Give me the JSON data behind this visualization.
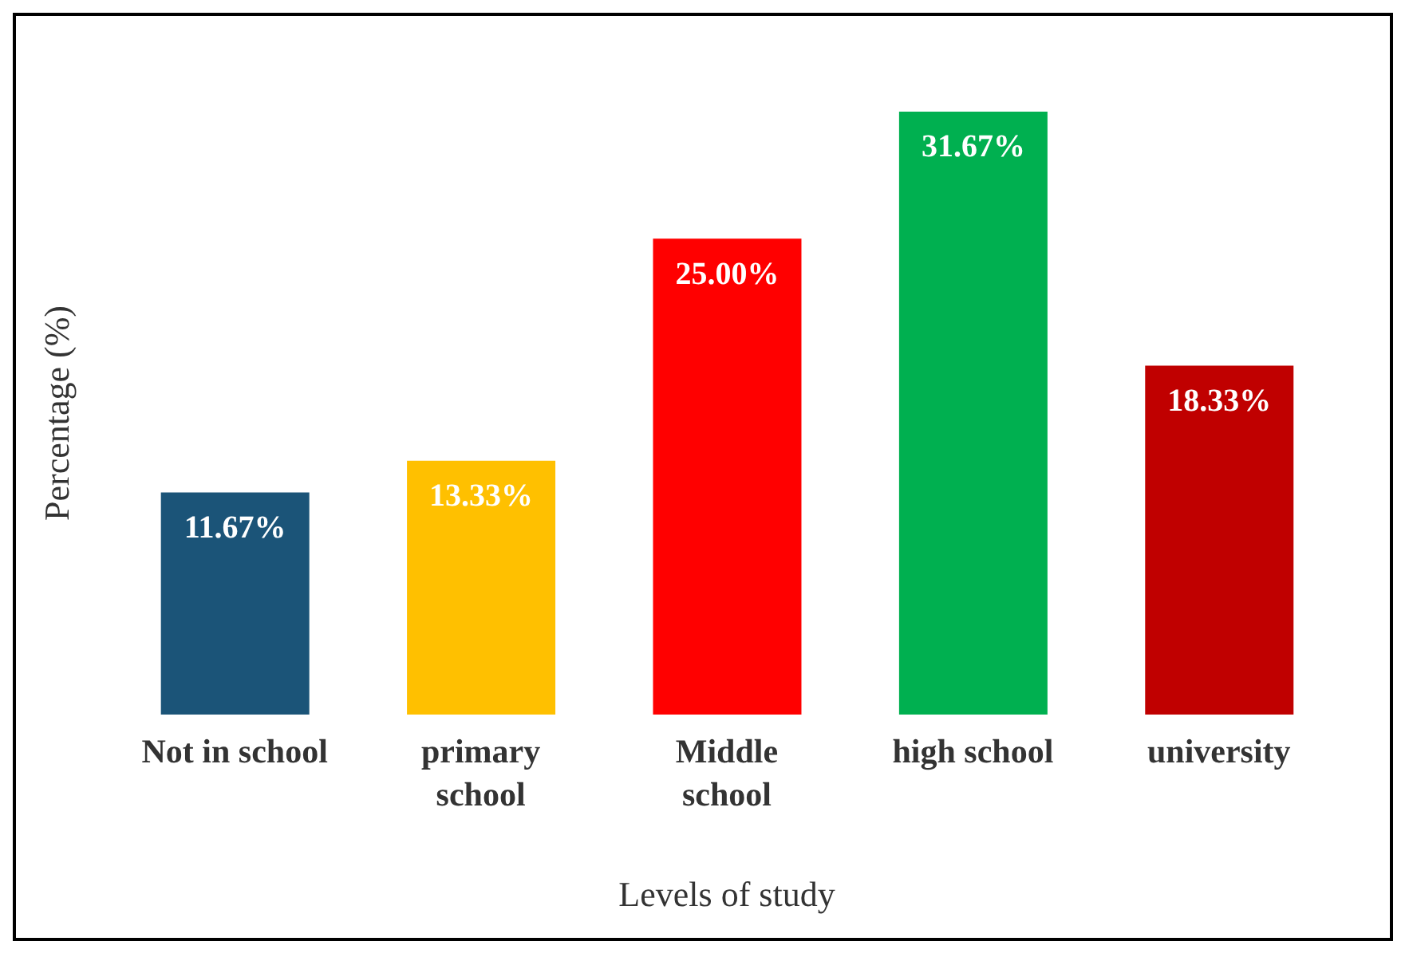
{
  "chart_data": {
    "type": "bar",
    "xlabel": "Levels of study",
    "ylabel": "Percentage (%)",
    "categories": [
      "Not in school",
      "primary\nschool",
      "Middle\nschool",
      "high school",
      "university"
    ],
    "values": [
      11.67,
      13.33,
      25.0,
      31.67,
      18.33
    ],
    "colors": [
      "#1b5478",
      "#ffc000",
      "#ff0000",
      "#00b050",
      "#c00000"
    ],
    "value_labels": [
      "11.67%",
      "13.33%",
      "25.00%",
      "31.67%",
      "18.33%"
    ],
    "tick_labels": "x"
  }
}
